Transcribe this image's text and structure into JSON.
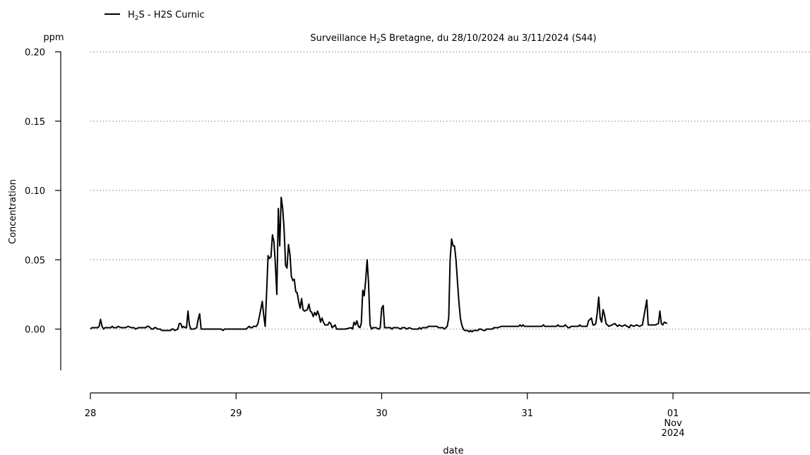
{
  "chart_data": {
    "type": "line",
    "title_prefix": "Surveillance H",
    "title_sub": "2",
    "title_suffix": "S Bretagne, du 28/10/2024 au 3/11/2024 (S44)",
    "legend": {
      "prefix": "H",
      "sub": "2",
      "suffix": "S - H2S Curnic",
      "placement": "top-left"
    },
    "unit": "ppm",
    "ylabel": "Concentration",
    "xlabel": "date",
    "ylim": [
      -0.03,
      0.2
    ],
    "xlim": [
      28.0,
      32.0
    ],
    "grid": "horizontal dotted",
    "y_ticks": [
      {
        "value": 0.0,
        "label": "0.00"
      },
      {
        "value": 0.05,
        "label": "0.05"
      },
      {
        "value": 0.1,
        "label": "0.10"
      },
      {
        "value": 0.15,
        "label": "0.15"
      },
      {
        "value": 0.2,
        "label": "0.20"
      }
    ],
    "x_ticks": [
      {
        "value": 28,
        "lines": [
          "28"
        ]
      },
      {
        "value": 29,
        "lines": [
          "29"
        ]
      },
      {
        "value": 30,
        "lines": [
          "30"
        ]
      },
      {
        "value": 31,
        "lines": [
          "31"
        ]
      },
      {
        "value": 32,
        "lines": [
          "01",
          "Nov",
          "2024"
        ]
      }
    ],
    "series": [
      {
        "name": "H2S - H2S Curnic",
        "color": "#000000",
        "points": [
          [
            28.0,
            0.0
          ],
          [
            28.01,
            0.001
          ],
          [
            28.03,
            0.001
          ],
          [
            28.05,
            0.001
          ],
          [
            28.06,
            0.002
          ],
          [
            28.07,
            0.007
          ],
          [
            28.08,
            0.002
          ],
          [
            28.09,
            0.0
          ],
          [
            28.1,
            0.001
          ],
          [
            28.12,
            0.001
          ],
          [
            28.14,
            0.001
          ],
          [
            28.15,
            0.002
          ],
          [
            28.16,
            0.001
          ],
          [
            28.18,
            0.001
          ],
          [
            28.19,
            0.002
          ],
          [
            28.21,
            0.001
          ],
          [
            28.24,
            0.001
          ],
          [
            28.26,
            0.002
          ],
          [
            28.28,
            0.001
          ],
          [
            28.3,
            0.001
          ],
          [
            28.31,
            0.0
          ],
          [
            28.33,
            0.001
          ],
          [
            28.36,
            0.001
          ],
          [
            28.38,
            0.001
          ],
          [
            28.39,
            0.002
          ],
          [
            28.4,
            0.002
          ],
          [
            28.41,
            0.001
          ],
          [
            28.42,
            0.0
          ],
          [
            28.43,
            0.0
          ],
          [
            28.44,
            0.001
          ],
          [
            28.45,
            0.001
          ],
          [
            28.46,
            0.0
          ],
          [
            28.48,
            0.0
          ],
          [
            28.49,
            -0.001
          ],
          [
            28.52,
            -0.001
          ],
          [
            28.55,
            -0.001
          ],
          [
            28.56,
            0.0
          ],
          [
            28.57,
            0.0
          ],
          [
            28.58,
            -0.001
          ],
          [
            28.6,
            0.0
          ],
          [
            28.61,
            0.004
          ],
          [
            28.62,
            0.004
          ],
          [
            28.63,
            0.001
          ],
          [
            28.64,
            0.002
          ],
          [
            28.65,
            0.001
          ],
          [
            28.66,
            0.001
          ],
          [
            28.67,
            0.013
          ],
          [
            28.68,
            0.003
          ],
          [
            28.69,
            0.0
          ],
          [
            28.71,
            0.0
          ],
          [
            28.73,
            0.001
          ],
          [
            28.74,
            0.007
          ],
          [
            28.75,
            0.011
          ],
          [
            28.76,
            0.0
          ],
          [
            28.8,
            0.0
          ],
          [
            28.85,
            0.0
          ],
          [
            28.9,
            0.0
          ],
          [
            28.91,
            -0.001
          ],
          [
            28.92,
            0.0
          ],
          [
            28.95,
            0.0
          ],
          [
            29.0,
            0.0
          ],
          [
            29.04,
            0.0
          ],
          [
            29.07,
            0.0
          ],
          [
            29.08,
            0.001
          ],
          [
            29.09,
            0.002
          ],
          [
            29.1,
            0.001
          ],
          [
            29.11,
            0.001
          ],
          [
            29.12,
            0.002
          ],
          [
            29.14,
            0.002
          ],
          [
            29.15,
            0.004
          ],
          [
            29.16,
            0.009
          ],
          [
            29.18,
            0.02
          ],
          [
            29.19,
            0.01
          ],
          [
            29.2,
            0.002
          ],
          [
            29.21,
            0.027
          ],
          [
            29.22,
            0.053
          ],
          [
            29.23,
            0.051
          ],
          [
            29.24,
            0.052
          ],
          [
            29.25,
            0.068
          ],
          [
            29.26,
            0.063
          ],
          [
            29.27,
            0.047
          ],
          [
            29.28,
            0.025
          ],
          [
            29.29,
            0.087
          ],
          [
            29.3,
            0.06
          ],
          [
            29.31,
            0.095
          ],
          [
            29.32,
            0.087
          ],
          [
            29.33,
            0.072
          ],
          [
            29.34,
            0.046
          ],
          [
            29.35,
            0.044
          ],
          [
            29.36,
            0.061
          ],
          [
            29.37,
            0.054
          ],
          [
            29.38,
            0.038
          ],
          [
            29.39,
            0.035
          ],
          [
            29.4,
            0.036
          ],
          [
            29.41,
            0.027
          ],
          [
            29.42,
            0.026
          ],
          [
            29.43,
            0.02
          ],
          [
            29.44,
            0.015
          ],
          [
            29.45,
            0.022
          ],
          [
            29.46,
            0.014
          ],
          [
            29.47,
            0.013
          ],
          [
            29.49,
            0.014
          ],
          [
            29.5,
            0.018
          ],
          [
            29.51,
            0.013
          ],
          [
            29.52,
            0.012
          ],
          [
            29.53,
            0.009
          ],
          [
            29.54,
            0.012
          ],
          [
            29.55,
            0.01
          ],
          [
            29.56,
            0.013
          ],
          [
            29.57,
            0.01
          ],
          [
            29.58,
            0.005
          ],
          [
            29.59,
            0.008
          ],
          [
            29.6,
            0.005
          ],
          [
            29.61,
            0.003
          ],
          [
            29.63,
            0.003
          ],
          [
            29.64,
            0.005
          ],
          [
            29.65,
            0.004
          ],
          [
            29.66,
            0.001
          ],
          [
            29.67,
            0.002
          ],
          [
            29.68,
            0.003
          ],
          [
            29.69,
            0.0
          ],
          [
            29.7,
            0.0
          ],
          [
            29.75,
            0.0
          ],
          [
            29.79,
            0.001
          ],
          [
            29.8,
            0.0
          ],
          [
            29.81,
            0.005
          ],
          [
            29.82,
            0.003
          ],
          [
            29.83,
            0.006
          ],
          [
            29.84,
            0.002
          ],
          [
            29.85,
            0.001
          ],
          [
            29.86,
            0.004
          ],
          [
            29.87,
            0.028
          ],
          [
            29.88,
            0.024
          ],
          [
            29.89,
            0.035
          ],
          [
            29.9,
            0.05
          ],
          [
            29.91,
            0.033
          ],
          [
            29.92,
            0.003
          ],
          [
            29.93,
            0.0
          ],
          [
            29.94,
            0.001
          ],
          [
            29.96,
            0.001
          ],
          [
            29.98,
            0.0
          ],
          [
            29.99,
            0.001
          ],
          [
            30.0,
            0.015
          ],
          [
            30.01,
            0.017
          ],
          [
            30.02,
            0.001
          ],
          [
            30.04,
            0.001
          ],
          [
            30.06,
            0.001
          ],
          [
            30.07,
            0.0
          ],
          [
            30.08,
            0.001
          ],
          [
            30.11,
            0.001
          ],
          [
            30.13,
            0.0
          ],
          [
            30.14,
            0.001
          ],
          [
            30.16,
            0.001
          ],
          [
            30.17,
            0.0
          ],
          [
            30.19,
            0.001
          ],
          [
            30.21,
            0.0
          ],
          [
            30.25,
            0.0
          ],
          [
            30.26,
            0.001
          ],
          [
            30.27,
            0.0
          ],
          [
            30.28,
            0.001
          ],
          [
            30.31,
            0.001
          ],
          [
            30.32,
            0.002
          ],
          [
            30.38,
            0.002
          ],
          [
            30.39,
            0.001
          ],
          [
            30.42,
            0.001
          ],
          [
            30.43,
            0.0
          ],
          [
            30.44,
            0.001
          ],
          [
            30.45,
            0.002
          ],
          [
            30.46,
            0.008
          ],
          [
            30.47,
            0.05
          ],
          [
            30.48,
            0.065
          ],
          [
            30.49,
            0.06
          ],
          [
            30.5,
            0.06
          ],
          [
            30.51,
            0.05
          ],
          [
            30.52,
            0.035
          ],
          [
            30.53,
            0.02
          ],
          [
            30.54,
            0.008
          ],
          [
            30.55,
            0.003
          ],
          [
            30.56,
            0.0
          ],
          [
            30.57,
            -0.001
          ],
          [
            30.59,
            -0.001
          ],
          [
            30.6,
            -0.002
          ],
          [
            30.61,
            -0.001
          ],
          [
            30.62,
            -0.002
          ],
          [
            30.63,
            -0.001
          ],
          [
            30.66,
            -0.001
          ],
          [
            30.67,
            0.0
          ],
          [
            30.68,
            0.0
          ],
          [
            30.7,
            -0.001
          ],
          [
            30.71,
            -0.001
          ],
          [
            30.72,
            0.0
          ],
          [
            30.73,
            0.0
          ],
          [
            30.75,
            0.0
          ],
          [
            30.76,
            0.0
          ],
          [
            30.77,
            0.001
          ],
          [
            30.8,
            0.001
          ],
          [
            30.82,
            0.002
          ],
          [
            30.85,
            0.002
          ],
          [
            30.9,
            0.002
          ],
          [
            30.94,
            0.002
          ],
          [
            30.95,
            0.003
          ],
          [
            30.96,
            0.002
          ],
          [
            30.97,
            0.003
          ],
          [
            30.98,
            0.002
          ],
          [
            31.05,
            0.002
          ],
          [
            31.1,
            0.002
          ],
          [
            31.11,
            0.003
          ],
          [
            31.12,
            0.002
          ],
          [
            31.2,
            0.002
          ],
          [
            31.21,
            0.003
          ],
          [
            31.22,
            0.002
          ],
          [
            31.25,
            0.002
          ],
          [
            31.26,
            0.003
          ],
          [
            31.27,
            0.002
          ],
          [
            31.28,
            0.001
          ],
          [
            31.29,
            0.001
          ],
          [
            31.3,
            0.002
          ],
          [
            31.35,
            0.002
          ],
          [
            31.36,
            0.003
          ],
          [
            31.37,
            0.002
          ],
          [
            31.41,
            0.002
          ],
          [
            31.42,
            0.006
          ],
          [
            31.44,
            0.008
          ],
          [
            31.45,
            0.003
          ],
          [
            31.46,
            0.003
          ],
          [
            31.47,
            0.004
          ],
          [
            31.48,
            0.012
          ],
          [
            31.49,
            0.023
          ],
          [
            31.5,
            0.008
          ],
          [
            31.51,
            0.005
          ],
          [
            31.52,
            0.014
          ],
          [
            31.53,
            0.01
          ],
          [
            31.54,
            0.004
          ],
          [
            31.55,
            0.003
          ],
          [
            31.56,
            0.002
          ],
          [
            31.58,
            0.003
          ],
          [
            31.6,
            0.004
          ],
          [
            31.62,
            0.002
          ],
          [
            31.63,
            0.003
          ],
          [
            31.65,
            0.002
          ],
          [
            31.67,
            0.003
          ],
          [
            31.7,
            0.001
          ],
          [
            31.71,
            0.003
          ],
          [
            31.73,
            0.002
          ],
          [
            31.75,
            0.003
          ],
          [
            31.77,
            0.002
          ],
          [
            31.79,
            0.003
          ],
          [
            31.82,
            0.021
          ],
          [
            31.83,
            0.003
          ],
          [
            31.85,
            0.003
          ],
          [
            31.88,
            0.003
          ],
          [
            31.9,
            0.004
          ],
          [
            31.91,
            0.013
          ],
          [
            31.92,
            0.004
          ],
          [
            31.93,
            0.003
          ],
          [
            31.94,
            0.005
          ],
          [
            31.96,
            0.004
          ]
        ]
      }
    ]
  }
}
